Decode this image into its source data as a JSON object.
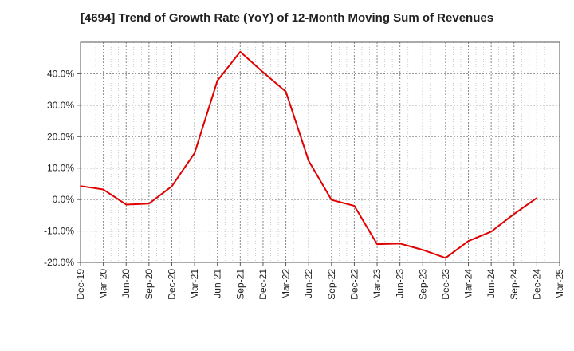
{
  "chart_data": {
    "type": "line",
    "title": "[4694]  Trend of Growth Rate (YoY) of 12-Month Moving Sum of Revenues",
    "xlabel": "",
    "ylabel": "",
    "categories": [
      "Dec-19",
      "Mar-20",
      "Jun-20",
      "Sep-20",
      "Dec-20",
      "Mar-21",
      "Jun-21",
      "Sep-21",
      "Dec-21",
      "Mar-22",
      "Jun-22",
      "Sep-22",
      "Dec-22",
      "Mar-23",
      "Jun-23",
      "Sep-23",
      "Dec-23",
      "Mar-24",
      "Jun-24",
      "Sep-24",
      "Dec-24",
      "Mar-25"
    ],
    "ylim": [
      -20,
      50
    ],
    "yticks": [
      -20,
      -10,
      0,
      10,
      20,
      30,
      40
    ],
    "ytick_labels": [
      "-20.0%",
      "-10.0%",
      "0.0%",
      "10.0%",
      "20.0%",
      "30.0%",
      "40.0%"
    ],
    "grid": true,
    "series": [
      {
        "color": "#e00000",
        "values": [
          4.3,
          3.2,
          -1.6,
          -1.3,
          4.2,
          14.8,
          37.8,
          47.0,
          40.5,
          34.3,
          12.3,
          -0.1,
          -2.0,
          -14.2,
          -14.0,
          -16.0,
          -18.6,
          -13.2,
          -10.2,
          -4.6,
          0.5,
          null
        ]
      }
    ]
  }
}
